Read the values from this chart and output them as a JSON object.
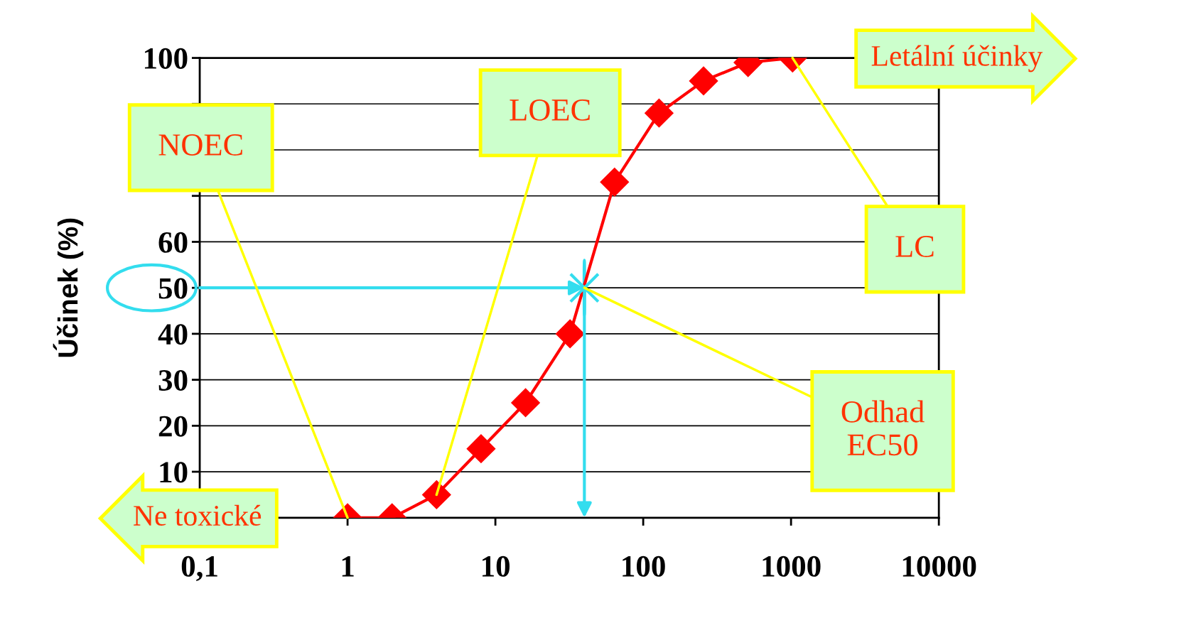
{
  "chart_data": {
    "type": "line",
    "ylabel": "Účinek (%)",
    "log": "x",
    "grid": "y",
    "marker": "diamond",
    "line_style": "solid",
    "x": [
      1,
      2,
      4,
      8,
      16,
      32,
      64,
      128,
      256,
      512,
      1024
    ],
    "series": [
      {
        "color": "#ff0000",
        "values": [
          0,
          0,
          5,
          15,
          25,
          40,
          73,
          88,
          95,
          99,
          100
        ]
      }
    ],
    "xlim": [
      0.1,
      10000
    ],
    "xticks": [
      {
        "value": 0.1,
        "label": "0,1"
      },
      1,
      10,
      100,
      1000,
      10000
    ],
    "ylim": [
      0,
      100
    ],
    "yticks": [
      {
        "value": 0,
        "label": null
      },
      10,
      20,
      30,
      40,
      50,
      60,
      {
        "value": 70,
        "label": null
      },
      {
        "value": 80,
        "label": null
      },
      {
        "value": 90,
        "label": null
      },
      100
    ],
    "annotations": [
      {
        "text": "NOEC",
        "x": 1,
        "y": 0
      },
      {
        "text": "LOEC",
        "x": 4,
        "y": 5
      },
      {
        "text": "LC",
        "x": 1024,
        "y": 100
      },
      {
        "text": "Odhad\nEC50",
        "x": 40,
        "y": 50
      },
      "Letální účinky",
      "Ne toxické"
    ]
  }
}
